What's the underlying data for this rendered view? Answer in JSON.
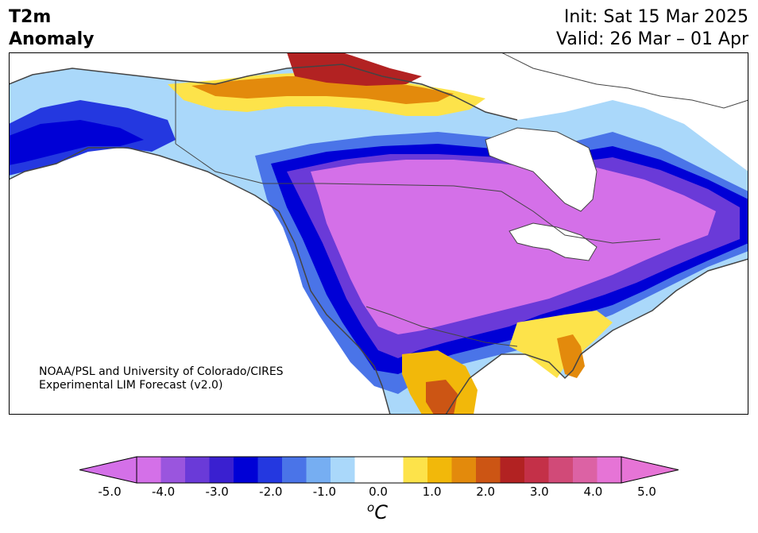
{
  "title": {
    "left_line1": "T2m",
    "left_line2": "Anomaly",
    "right_line1": "Init: Sat 15 Mar 2025",
    "right_line2": "Valid: 26 Mar – 01 Apr"
  },
  "credit": {
    "line1": "NOAA/PSL and University of Colorado/CIRES",
    "line2": "Experimental LIM Forecast (v2.0)"
  },
  "colorbar": {
    "tick_labels": [
      "-5.0",
      "-4.0",
      "-3.0",
      "-2.0",
      "-1.0",
      "0.0",
      "1.0",
      "2.0",
      "3.0",
      "4.0",
      "5.0"
    ],
    "units_symbol": "o",
    "units_letter": "C",
    "colors": [
      "#d470e8",
      "#9a55de",
      "#6a3ad8",
      "#3a20d0",
      "#0000d6",
      "#2438e0",
      "#4a74e8",
      "#76aef2",
      "#aad8fa",
      "#ffffff",
      "#ffffff",
      "#fde34a",
      "#f2b80a",
      "#e38a0c",
      "#cc5514",
      "#b22222",
      "#c43048",
      "#d14a78",
      "#dc62a4",
      "#e674d6"
    ]
  }
}
